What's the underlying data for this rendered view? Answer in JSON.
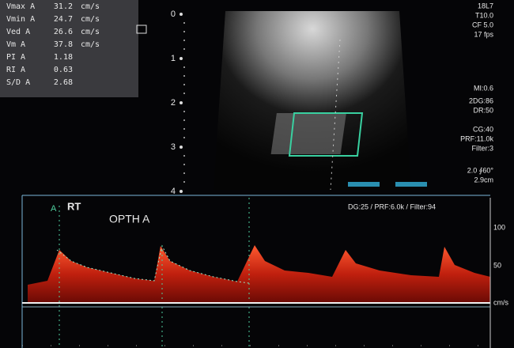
{
  "measurements": [
    {
      "label": "Vmax A",
      "value": "31.2",
      "unit": "cm/s"
    },
    {
      "label": "Vmin A",
      "value": "24.7",
      "unit": "cm/s"
    },
    {
      "label": "Ved A",
      "value": "26.6",
      "unit": "cm/s"
    },
    {
      "label": "Vm A",
      "value": "37.8",
      "unit": "cm/s"
    },
    {
      "label": "PI A",
      "value": "1.18"
    },
    {
      "label": "RI A",
      "value": "0.63"
    },
    {
      "label": "S/D A",
      "value": "2.68"
    }
  ],
  "depth_scale": [
    "0",
    "1",
    "2",
    "3",
    "4"
  ],
  "settings": [
    "18L7",
    "T10.0",
    "CF 5.0",
    "17 fps",
    "MI:0.6",
    "2DG:86",
    "DR:50",
    "CG:40",
    "PRF:11.0k",
    "Filter:3",
    "2.0 ∮60°",
    "2.9cm"
  ],
  "doppler": {
    "header": "DG:25 / PRF:6.0k / Filter:94",
    "side": "RT",
    "vessel": "OPTH A",
    "scale": [
      "100",
      "50"
    ],
    "unit": "cm/s"
  }
}
